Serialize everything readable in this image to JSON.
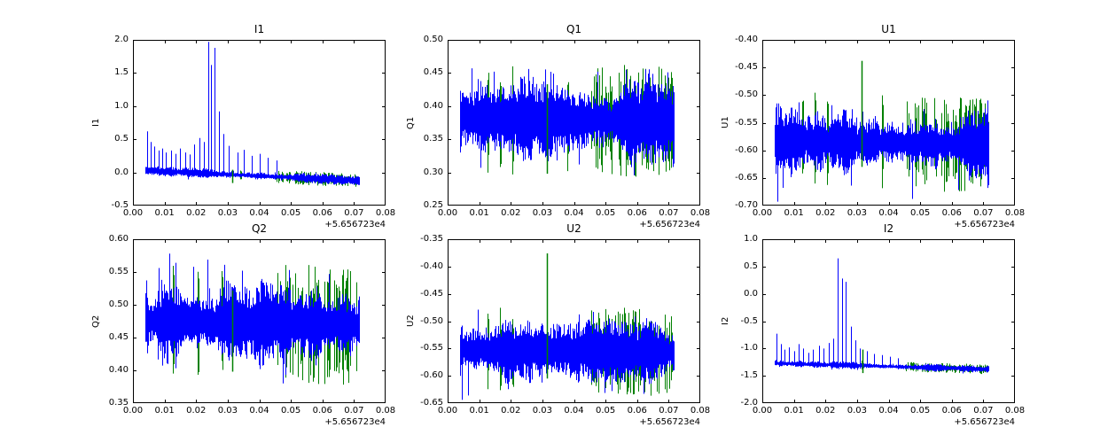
{
  "figure": {
    "background": "#ffffff",
    "text_color": "#000000",
    "primary_line_color": "#0000ff",
    "secondary_line_color": "#008000",
    "x_offset_label": "+5.656723e4"
  },
  "chart_data": [
    {
      "type": "line",
      "title": "I1",
      "ylabel": "I1",
      "xlabel": "",
      "grid": false,
      "legend": null,
      "xlim": [
        0.0,
        0.08
      ],
      "ylim": [
        -0.5,
        2.0
      ],
      "xticks": [
        0.0,
        0.01,
        0.02,
        0.03,
        0.04,
        0.05,
        0.06,
        0.07,
        0.08
      ],
      "xtick_decimals": 2,
      "yticks": [
        -0.5,
        0.0,
        0.5,
        1.0,
        1.5,
        2.0
      ],
      "ytick_decimals": 1,
      "x_offset_label": "+5.656723e4",
      "colors": {
        "primary": "#0000ff",
        "secondary": "#008000"
      },
      "data_x_range": [
        0.004,
        0.0715
      ],
      "band": {
        "center_start": 0.03,
        "center_end": -0.125,
        "amplitude": 0.08
      },
      "spikes": [
        [
          0.0045,
          0.62
        ],
        [
          0.0055,
          0.46
        ],
        [
          0.0068,
          0.39
        ],
        [
          0.008,
          0.33
        ],
        [
          0.0092,
          0.36
        ],
        [
          0.0105,
          0.3
        ],
        [
          0.012,
          0.33
        ],
        [
          0.0135,
          0.28
        ],
        [
          0.015,
          0.36
        ],
        [
          0.0165,
          0.3
        ],
        [
          0.018,
          0.27
        ],
        [
          0.0195,
          0.42
        ],
        [
          0.021,
          0.52
        ],
        [
          0.0225,
          0.46
        ],
        [
          0.0238,
          1.97
        ],
        [
          0.0248,
          1.62
        ],
        [
          0.0258,
          1.88
        ],
        [
          0.0272,
          0.92
        ],
        [
          0.0285,
          0.58
        ],
        [
          0.0302,
          0.4
        ],
        [
          0.033,
          0.3
        ],
        [
          0.0352,
          0.34
        ],
        [
          0.0375,
          0.25
        ],
        [
          0.0402,
          0.28
        ],
        [
          0.0428,
          0.22
        ],
        [
          0.0455,
          0.18
        ]
      ],
      "green_spikes": [
        [
          0.0315,
          -0.16,
          0.04
        ]
      ],
      "green_columns": {
        "regions": [
          [
            0.0455,
            0.0715
          ]
        ],
        "density": 0.5,
        "isolated_x": [
          0.034
        ]
      }
    },
    {
      "type": "line",
      "title": "Q1",
      "ylabel": "Q1",
      "xlabel": "",
      "grid": false,
      "legend": null,
      "xlim": [
        0.0,
        0.08
      ],
      "ylim": [
        0.25,
        0.5
      ],
      "xticks": [
        0.0,
        0.01,
        0.02,
        0.03,
        0.04,
        0.05,
        0.06,
        0.07,
        0.08
      ],
      "xtick_decimals": 2,
      "yticks": [
        0.25,
        0.3,
        0.35,
        0.4,
        0.45,
        0.5
      ],
      "ytick_decimals": 2,
      "x_offset_label": "+5.656723e4",
      "colors": {
        "primary": "#0000ff",
        "secondary": "#008000"
      },
      "data_x_range": [
        0.004,
        0.0715
      ],
      "band": {
        "center_start": 0.383,
        "center_end": 0.376,
        "amplitude": 0.065
      },
      "spikes": [
        [
          0.0075,
          0.457
        ],
        [
          0.0145,
          0.452
        ],
        [
          0.0255,
          0.456
        ],
        [
          0.0335,
          0.449
        ],
        [
          0.0475,
          0.452
        ],
        [
          0.0565,
          0.455
        ],
        [
          0.0635,
          0.449
        ],
        [
          0.0695,
          0.451
        ],
        [
          0.0105,
          0.307
        ],
        [
          0.0415,
          0.312
        ],
        [
          0.058,
          0.308
        ]
      ],
      "green_spikes": [
        [
          0.0315,
          0.298,
          0.433
        ]
      ],
      "green_columns": {
        "regions": [
          [
            0.0455,
            0.0715
          ]
        ],
        "density": 0.5,
        "isolated_x": [
          0.0125,
          0.0165,
          0.0205,
          0.038
        ]
      }
    },
    {
      "type": "line",
      "title": "U1",
      "ylabel": "U1",
      "xlabel": "",
      "grid": false,
      "legend": null,
      "xlim": [
        0.0,
        0.08
      ],
      "ylim": [
        -0.7,
        -0.4
      ],
      "xticks": [
        0.0,
        0.01,
        0.02,
        0.03,
        0.04,
        0.05,
        0.06,
        0.07,
        0.08
      ],
      "xtick_decimals": 2,
      "yticks": [
        -0.7,
        -0.65,
        -0.6,
        -0.55,
        -0.5,
        -0.45,
        -0.4
      ],
      "ytick_decimals": 2,
      "x_offset_label": "+5.656723e4",
      "colors": {
        "primary": "#0000ff",
        "secondary": "#008000"
      },
      "data_x_range": [
        0.004,
        0.0715
      ],
      "band": {
        "center_start": -0.582,
        "center_end": -0.59,
        "amplitude": 0.068
      },
      "spikes": [
        [
          0.0048,
          -0.693
        ],
        [
          0.0065,
          -0.668
        ],
        [
          0.028,
          -0.664
        ],
        [
          0.0475,
          -0.688
        ],
        [
          0.062,
          -0.672
        ]
      ],
      "green_spikes": [
        [
          0.0315,
          -0.63,
          -0.438
        ]
      ],
      "green_columns": {
        "regions": [
          [
            0.0455,
            0.0715
          ]
        ],
        "density": 0.5,
        "isolated_x": [
          0.0125,
          0.0165,
          0.0205,
          0.038
        ]
      }
    },
    {
      "type": "line",
      "title": "Q2",
      "ylabel": "Q2",
      "xlabel": "",
      "grid": false,
      "legend": null,
      "xlim": [
        0.0,
        0.08
      ],
      "ylim": [
        0.35,
        0.6
      ],
      "xticks": [
        0.0,
        0.01,
        0.02,
        0.03,
        0.04,
        0.05,
        0.06,
        0.07,
        0.08
      ],
      "xtick_decimals": 2,
      "yticks": [
        0.35,
        0.4,
        0.45,
        0.5,
        0.55,
        0.6
      ],
      "ytick_decimals": 2,
      "x_offset_label": "+5.656723e4",
      "colors": {
        "primary": "#0000ff",
        "secondary": "#008000"
      },
      "data_x_range": [
        0.004,
        0.0715
      ],
      "band": {
        "center_start": 0.476,
        "center_end": 0.468,
        "amplitude": 0.07
      },
      "spikes": [
        [
          0.008,
          0.556
        ],
        [
          0.0115,
          0.578
        ],
        [
          0.0135,
          0.564
        ],
        [
          0.019,
          0.558
        ],
        [
          0.0235,
          0.569
        ],
        [
          0.029,
          0.561
        ],
        [
          0.0345,
          0.552
        ],
        [
          0.0495,
          0.553
        ],
        [
          0.062,
          0.547
        ]
      ],
      "green_spikes": [
        [
          0.0315,
          0.398,
          0.522
        ]
      ],
      "green_columns": {
        "regions": [
          [
            0.0455,
            0.0715
          ]
        ],
        "density": 0.5,
        "isolated_x": [
          0.0125,
          0.0205,
          0.028
        ]
      }
    },
    {
      "type": "line",
      "title": "U2",
      "ylabel": "U2",
      "xlabel": "",
      "grid": false,
      "legend": null,
      "xlim": [
        0.0,
        0.08
      ],
      "ylim": [
        -0.65,
        -0.35
      ],
      "xticks": [
        0.0,
        0.01,
        0.02,
        0.03,
        0.04,
        0.05,
        0.06,
        0.07,
        0.08
      ],
      "xtick_decimals": 2,
      "yticks": [
        -0.65,
        -0.6,
        -0.55,
        -0.5,
        -0.45,
        -0.4,
        -0.35
      ],
      "ytick_decimals": 2,
      "x_offset_label": "+5.656723e4",
      "colors": {
        "primary": "#0000ff",
        "secondary": "#008000"
      },
      "data_x_range": [
        0.004,
        0.0715
      ],
      "band": {
        "center_start": -0.552,
        "center_end": -0.557,
        "amplitude": 0.062
      },
      "spikes": [
        [
          0.0045,
          -0.644
        ],
        [
          0.0065,
          -0.636
        ],
        [
          0.0095,
          -0.479
        ],
        [
          0.046,
          -0.483
        ],
        [
          0.052,
          -0.628
        ],
        [
          0.062,
          -0.633
        ]
      ],
      "green_spikes": [
        [
          0.0315,
          -0.605,
          -0.376
        ]
      ],
      "green_columns": {
        "regions": [
          [
            0.0455,
            0.0715
          ]
        ],
        "density": 0.5,
        "isolated_x": [
          0.0125,
          0.0165,
          0.0205
        ]
      }
    },
    {
      "type": "line",
      "title": "I2",
      "ylabel": "I2",
      "xlabel": "",
      "grid": false,
      "legend": null,
      "xlim": [
        0.0,
        0.08
      ],
      "ylim": [
        -2.0,
        1.0
      ],
      "xticks": [
        0.0,
        0.01,
        0.02,
        0.03,
        0.04,
        0.05,
        0.06,
        0.07,
        0.08
      ],
      "xtick_decimals": 2,
      "yticks": [
        -2.0,
        -1.5,
        -1.0,
        -0.5,
        0.0,
        0.5,
        1.0
      ],
      "ytick_decimals": 1,
      "x_offset_label": "+5.656723e4",
      "colors": {
        "primary": "#0000ff",
        "secondary": "#008000"
      },
      "data_x_range": [
        0.004,
        0.0715
      ],
      "band": {
        "center_start": -1.27,
        "center_end": -1.38,
        "amplitude": 0.07
      },
      "spikes": [
        [
          0.0045,
          -0.73
        ],
        [
          0.0058,
          -0.92
        ],
        [
          0.007,
          -1.02
        ],
        [
          0.0085,
          -0.98
        ],
        [
          0.01,
          -1.05
        ],
        [
          0.0115,
          -0.92
        ],
        [
          0.013,
          -1.0
        ],
        [
          0.0145,
          -1.08
        ],
        [
          0.016,
          -1.02
        ],
        [
          0.018,
          -0.95
        ],
        [
          0.0195,
          -1.0
        ],
        [
          0.021,
          -0.9
        ],
        [
          0.0225,
          -0.82
        ],
        [
          0.0238,
          0.65
        ],
        [
          0.0252,
          0.28
        ],
        [
          0.0264,
          0.22
        ],
        [
          0.028,
          -0.6
        ],
        [
          0.0295,
          -0.85
        ],
        [
          0.031,
          -1.0
        ],
        [
          0.033,
          -1.05
        ],
        [
          0.0355,
          -1.1
        ],
        [
          0.038,
          -1.12
        ],
        [
          0.0405,
          -1.15
        ],
        [
          0.043,
          -1.18
        ]
      ],
      "green_spikes": [
        [
          0.0318,
          -1.45,
          -1.02
        ]
      ],
      "green_columns": {
        "regions": [
          [
            0.0455,
            0.0715
          ]
        ],
        "density": 0.5,
        "isolated_x": [
          0.0315
        ]
      }
    }
  ]
}
